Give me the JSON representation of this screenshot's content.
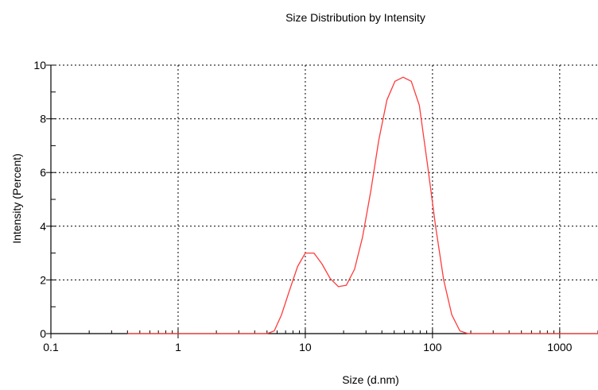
{
  "chart_data": {
    "type": "line",
    "title": "Size Distribution by Intensity",
    "xlabel": "Size (d.nm)",
    "ylabel": "Intensity (Percent)",
    "x_scale": "log",
    "xlim": [
      0.1,
      2000
    ],
    "ylim": [
      0,
      10
    ],
    "x_ticks": [
      0.1,
      1,
      10,
      100,
      1000
    ],
    "x_tick_labels": [
      "0.1",
      "1",
      "10",
      "100",
      "1000"
    ],
    "y_ticks": [
      0,
      2,
      4,
      6,
      8,
      10
    ],
    "y_tick_labels": [
      "0",
      "2",
      "4",
      "6",
      "8",
      "10"
    ],
    "grid": true,
    "series": [
      {
        "color": "#ff3b3b",
        "x": [
          0.4,
          0.5,
          0.7,
          1,
          1.5,
          2,
          3,
          4,
          5,
          5.7,
          6.5,
          7.5,
          8.7,
          10,
          11.7,
          13.5,
          15.7,
          18.2,
          21,
          24.4,
          28.2,
          32.7,
          37.8,
          43.8,
          50.7,
          58.8,
          68.1,
          78.8,
          91.3,
          105.7,
          122.4,
          141.8,
          164.2,
          190.1,
          220,
          300,
          500,
          1000,
          2000
        ],
        "y": [
          0,
          0,
          0,
          0,
          0,
          0,
          0,
          0,
          0,
          0.1,
          0.7,
          1.6,
          2.5,
          3.0,
          3.0,
          2.6,
          2.05,
          1.75,
          1.8,
          2.4,
          3.6,
          5.3,
          7.2,
          8.7,
          9.4,
          9.55,
          9.4,
          8.5,
          6.3,
          4.0,
          2.0,
          0.7,
          0.1,
          0,
          0,
          0,
          0,
          0,
          0
        ]
      }
    ]
  }
}
